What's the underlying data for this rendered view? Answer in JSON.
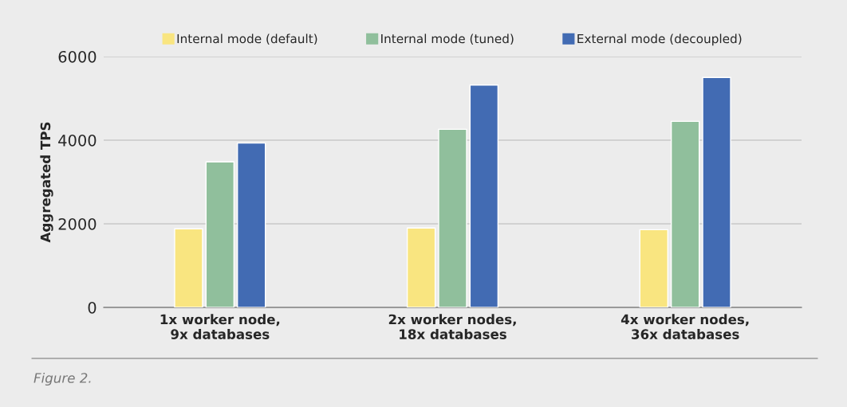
{
  "chart_data": {
    "type": "bar",
    "ylabel": "Aggregated TPS",
    "categories": [
      "1x worker node,\n9x databases",
      "2x worker nodes,\n18x databases",
      "4x worker nodes,\n36x databases"
    ],
    "series": [
      {
        "name": "Internal mode (default)",
        "color": "#f9e580",
        "values": [
          1880,
          1900,
          1860
        ]
      },
      {
        "name": "Internal mode (tuned)",
        "color": "#90bf9c",
        "values": [
          3480,
          4260,
          4450
        ]
      },
      {
        "name": "External mode (decoupled)",
        "color": "#426bb3",
        "values": [
          3930,
          5320,
          5500
        ]
      }
    ],
    "ylim": [
      0,
      6000
    ],
    "yticks": [
      0,
      2000,
      4000,
      6000
    ],
    "grid": "y",
    "legend": "top",
    "annotations": [
      "Figure 2."
    ]
  }
}
